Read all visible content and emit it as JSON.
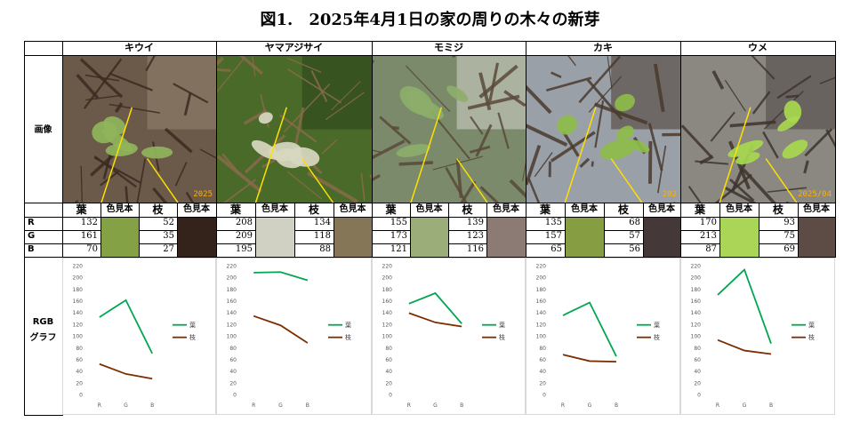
{
  "title": "図1.　2025年4月1日の家の周りの木々の新芽",
  "row_labels": {
    "image": "画像",
    "r": "R",
    "g": "G",
    "b": "B",
    "graph_line1": "RGB",
    "graph_line2": "グラフ"
  },
  "sub_headers": {
    "leaf": "葉",
    "leaf_swatch": "色見本",
    "branch": "枝",
    "branch_swatch": "色見本"
  },
  "trees": [
    {
      "name": "キウイ",
      "leaf": [
        132,
        161,
        70
      ],
      "branch": [
        52,
        35,
        27
      ],
      "leaf_color": "#84A146",
      "branch_color": "#34231B",
      "photo_stamp": "2025"
    },
    {
      "name": "ヤマアジサイ",
      "leaf": [
        208,
        209,
        195
      ],
      "branch": [
        134,
        118,
        88
      ],
      "leaf_color": "#D0D1C3",
      "branch_color": "#867658",
      "photo_stamp": ""
    },
    {
      "name": "モミジ",
      "leaf": [
        155,
        173,
        121
      ],
      "branch": [
        139,
        123,
        116
      ],
      "leaf_color": "#9BAD79",
      "branch_color": "#8B7B74",
      "photo_stamp": ""
    },
    {
      "name": "カキ",
      "leaf": [
        135,
        157,
        65
      ],
      "branch": [
        68,
        57,
        56
      ],
      "leaf_color": "#879D41",
      "branch_color": "#443938",
      "photo_stamp": "202"
    },
    {
      "name": "ウメ",
      "leaf": [
        170,
        213,
        87
      ],
      "branch": [
        93,
        75,
        69
      ],
      "leaf_color": "#AAD557",
      "branch_color": "#5D4B45",
      "photo_stamp": "2025/04"
    }
  ],
  "chart_data": [
    {
      "type": "line",
      "categories": [
        "R",
        "G",
        "B"
      ],
      "ylim": [
        0,
        220
      ],
      "yticks": [
        0,
        20,
        40,
        60,
        80,
        100,
        120,
        140,
        160,
        180,
        200,
        220
      ],
      "series": [
        {
          "name": "葉",
          "values": [
            132,
            161,
            70
          ],
          "color": "#00A651"
        },
        {
          "name": "枝",
          "values": [
            52,
            35,
            27
          ],
          "color": "#7B2E00"
        }
      ],
      "legend": "right"
    },
    {
      "type": "line",
      "categories": [
        "R",
        "G",
        "B"
      ],
      "ylim": [
        0,
        220
      ],
      "yticks": [
        0,
        20,
        40,
        60,
        80,
        100,
        120,
        140,
        160,
        180,
        200,
        220
      ],
      "series": [
        {
          "name": "葉",
          "values": [
            208,
            209,
            195
          ],
          "color": "#00A651"
        },
        {
          "name": "枝",
          "values": [
            134,
            118,
            88
          ],
          "color": "#7B2E00"
        }
      ],
      "legend": "right"
    },
    {
      "type": "line",
      "categories": [
        "R",
        "G",
        "B"
      ],
      "ylim": [
        0,
        220
      ],
      "yticks": [
        0,
        20,
        40,
        60,
        80,
        100,
        120,
        140,
        160,
        180,
        200,
        220
      ],
      "series": [
        {
          "name": "葉",
          "values": [
            155,
            173,
            121
          ],
          "color": "#00A651"
        },
        {
          "name": "枝",
          "values": [
            139,
            123,
            116
          ],
          "color": "#7B2E00"
        }
      ],
      "legend": "right"
    },
    {
      "type": "line",
      "categories": [
        "R",
        "G",
        "B"
      ],
      "ylim": [
        0,
        220
      ],
      "yticks": [
        0,
        20,
        40,
        60,
        80,
        100,
        120,
        140,
        160,
        180,
        200,
        220
      ],
      "series": [
        {
          "name": "葉",
          "values": [
            135,
            157,
            65
          ],
          "color": "#00A651"
        },
        {
          "name": "枝",
          "values": [
            68,
            57,
            56
          ],
          "color": "#7B2E00"
        }
      ],
      "legend": "right"
    },
    {
      "type": "line",
      "categories": [
        "R",
        "G",
        "B"
      ],
      "ylim": [
        0,
        220
      ],
      "yticks": [
        0,
        20,
        40,
        60,
        80,
        100,
        120,
        140,
        160,
        180,
        200,
        220
      ],
      "series": [
        {
          "name": "葉",
          "values": [
            170,
            213,
            87
          ],
          "color": "#00A651"
        },
        {
          "name": "枝",
          "values": [
            93,
            75,
            69
          ],
          "color": "#7B2E00"
        }
      ],
      "legend": "right"
    }
  ]
}
